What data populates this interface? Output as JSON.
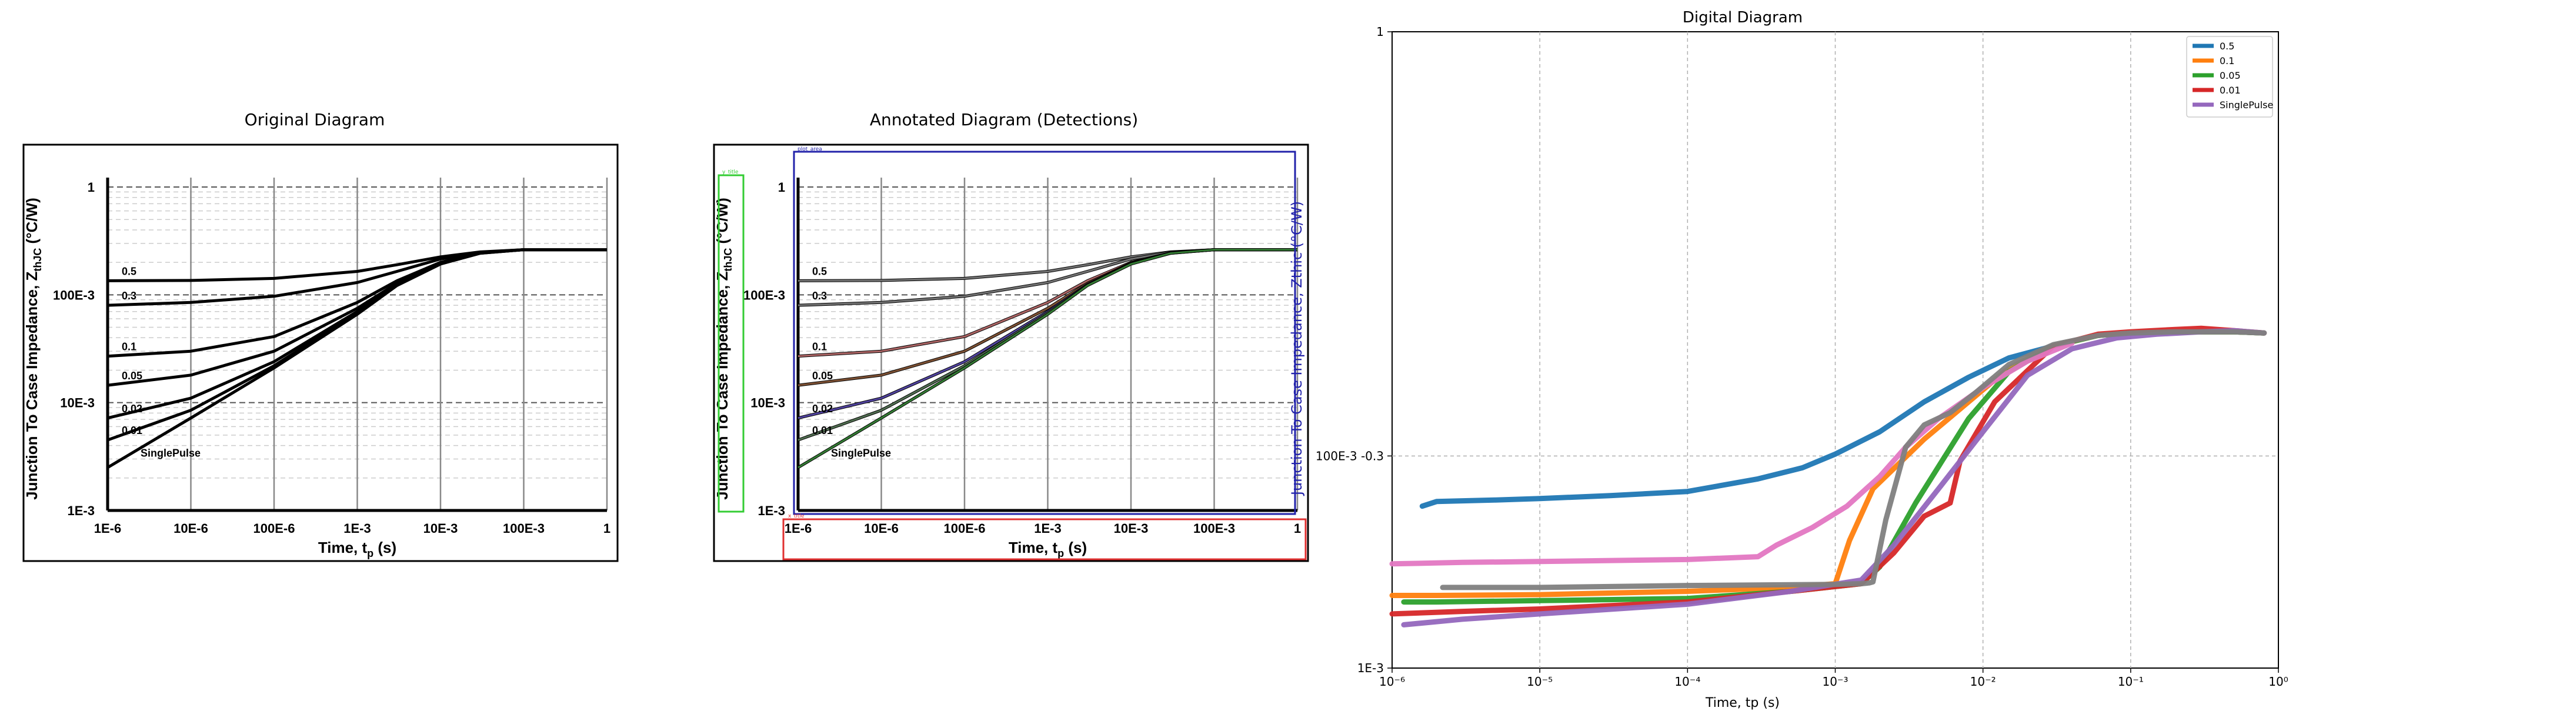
{
  "panels": {
    "original_title": "Original Diagram",
    "annotated_title": "Annotated Diagram (Detections)",
    "digital_title": "Digital Diagram"
  },
  "source_chart": {
    "y_ticks": [
      "1",
      "100E-3",
      "10E-3",
      "1E-3"
    ],
    "x_ticks": [
      "1E-6",
      "10E-6",
      "100E-6",
      "1E-3",
      "10E-3",
      "100E-3",
      "1"
    ],
    "ylabel_main": "Junction To Case Impedance, Z",
    "ylabel_sub": "thJC",
    "ylabel_unit": " (°C/W)",
    "xlabel_main": "Time, t",
    "xlabel_sub": "p",
    "xlabel_unit": " (s)",
    "curve_labels": [
      "0.5",
      "0.3",
      "0.1",
      "0.05",
      "0.02",
      "0.01",
      "SinglePulse"
    ]
  },
  "annotated_chart": {
    "y_axis_label_right": "Junction To Case Impedance, Zthic (°C/W)",
    "tiny_tags": [
      "y_title",
      "y_tick",
      "x_tick",
      "plot_area",
      "x_title"
    ]
  },
  "chart_data": {
    "type": "line",
    "title": "Digital Diagram",
    "xlabel": "Time, tp (s)",
    "ylabel": "",
    "x_scale": "log",
    "y_scale": "log",
    "xlim": [
      1e-06,
      1
    ],
    "ylim": [
      0.001,
      1
    ],
    "x_tick_labels": [
      "10⁻⁶",
      "10⁻⁵",
      "10⁻⁴",
      "10⁻³",
      "10⁻²",
      "10⁻¹",
      "10⁰"
    ],
    "y_tick_labels": [
      "1E-3",
      "100E-3 -0.3",
      "1"
    ],
    "grid": true,
    "legend_position": "top-right",
    "series": [
      {
        "name": "0.5",
        "color": "#1f77b4",
        "x": [
          1.6e-06,
          2e-06,
          5e-06,
          1e-05,
          3e-05,
          0.0001,
          0.0003,
          0.0006,
          0.001,
          0.002,
          0.004,
          0.008,
          0.015,
          0.03,
          0.06,
          0.1,
          0.2,
          0.5,
          0.8
        ],
        "y": [
          0.0058,
          0.0061,
          0.0062,
          0.0063,
          0.0065,
          0.0068,
          0.0078,
          0.0088,
          0.0102,
          0.013,
          0.018,
          0.0235,
          0.029,
          0.033,
          0.037,
          0.038,
          0.0385,
          0.0385,
          0.038
        ]
      },
      {
        "name": "0.1",
        "color": "#ff7f0e",
        "x": [
          1e-06,
          2e-06,
          1e-05,
          0.0001,
          0.0005,
          0.001,
          0.00125,
          0.0018,
          0.004,
          0.008,
          0.015,
          0.03,
          0.06,
          0.1,
          0.2,
          0.5,
          0.8
        ],
        "y": [
          0.0022,
          0.0022,
          0.00222,
          0.0023,
          0.0024,
          0.0025,
          0.004,
          0.007,
          0.012,
          0.018,
          0.026,
          0.033,
          0.037,
          0.038,
          0.0385,
          0.0385,
          0.038
        ]
      },
      {
        "name": "0.05",
        "color": "#2ca02c",
        "x": [
          1.2e-06,
          2e-06,
          1e-05,
          0.0001,
          0.0005,
          0.0015,
          0.002,
          0.0035,
          0.008,
          0.015,
          0.03,
          0.06,
          0.1,
          0.2,
          0.5,
          0.8
        ],
        "y": [
          0.00205,
          0.00205,
          0.00208,
          0.00213,
          0.0023,
          0.0025,
          0.003,
          0.006,
          0.015,
          0.025,
          0.033,
          0.037,
          0.038,
          0.0385,
          0.0385,
          0.038
        ]
      },
      {
        "name": "0.01",
        "color": "#d62728",
        "x": [
          1e-06,
          3e-06,
          1e-05,
          0.0001,
          0.0005,
          0.0015,
          0.0025,
          0.004,
          0.006,
          0.007,
          0.012,
          0.03,
          0.06,
          0.1,
          0.2,
          0.3,
          0.5,
          0.8
        ],
        "y": [
          0.0018,
          0.00185,
          0.0019,
          0.00205,
          0.0023,
          0.0025,
          0.0035,
          0.0052,
          0.006,
          0.0095,
          0.018,
          0.033,
          0.0375,
          0.0385,
          0.0395,
          0.04,
          0.039,
          0.038
        ]
      },
      {
        "name": "SinglePulse",
        "color": "#9467bd",
        "x": [
          1.2e-06,
          3e-06,
          1e-05,
          0.0001,
          0.0005,
          0.0015,
          0.0025,
          0.005,
          0.01,
          0.02,
          0.04,
          0.08,
          0.15,
          0.3,
          0.5,
          0.8
        ],
        "y": [
          0.0016,
          0.0017,
          0.0018,
          0.002,
          0.0023,
          0.0026,
          0.0038,
          0.007,
          0.013,
          0.024,
          0.032,
          0.036,
          0.0375,
          0.0385,
          0.039,
          0.038
        ]
      },
      {
        "name": "",
        "color": "#e377c2",
        "x": [
          1e-06,
          3e-06,
          1e-05,
          0.0001,
          0.0003,
          0.0004,
          0.0007,
          0.0012,
          0.002,
          0.003,
          0.005,
          0.01,
          0.02,
          0.04
        ],
        "y": [
          0.0031,
          0.00315,
          0.00318,
          0.00325,
          0.00335,
          0.0038,
          0.0046,
          0.0058,
          0.008,
          0.011,
          0.015,
          0.021,
          0.028,
          0.034
        ]
      },
      {
        "name": "",
        "color": "#7f7f7f",
        "x": [
          2.2e-06,
          1e-05,
          0.0001,
          0.001,
          0.0015,
          0.0017,
          0.0018,
          0.0022,
          0.003,
          0.004,
          0.006,
          0.009,
          0.015,
          0.03,
          0.06,
          0.1,
          0.2,
          0.5,
          0.8
        ],
        "y": [
          0.0024,
          0.0024,
          0.00245,
          0.00248,
          0.0025,
          0.00252,
          0.00255,
          0.005,
          0.011,
          0.014,
          0.016,
          0.02,
          0.027,
          0.0335,
          0.037,
          0.038,
          0.0385,
          0.0385,
          0.038
        ]
      }
    ]
  },
  "colors": {
    "annot_green": "#33cc33",
    "annot_blue": "#2222aa",
    "annot_red": "#e03030",
    "axis": "#000000",
    "grid": "#b0b0b0"
  }
}
